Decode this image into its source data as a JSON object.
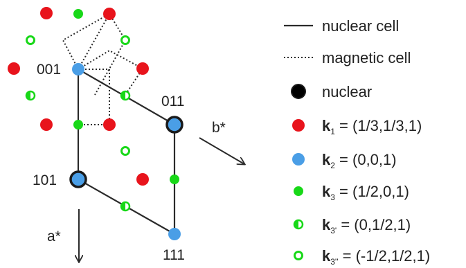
{
  "colors": {
    "k1": "#e8141c",
    "k2": "#4a9ee6",
    "k3": "#18d818",
    "nuclear_outline": "#1a1a1a",
    "line": "#2a2a2a"
  },
  "lattice_labels": {
    "p001": "001",
    "p011": "011",
    "p101": "101",
    "p111": "111"
  },
  "axes": {
    "b_star": "b*",
    "a_star": "a*"
  },
  "legend": {
    "nuclear_cell": "nuclear cell",
    "magnetic_cell": "magnetic cell",
    "nuclear": "nuclear",
    "k_symbol": "k",
    "k1_sub": "1",
    "k1_val": " = (1/3,1/3,1)",
    "k2_sub": "2",
    "k2_val": " = (0,0,1)",
    "k3_sub": "3",
    "k3_val": " = (1/2,0,1)",
    "k3p_sub": "3'",
    "k3p_val": " = (0,1/2,1)",
    "k3pp_sub": "3''",
    "k3pp_val": " = (-1/2,1/2,1)"
  }
}
